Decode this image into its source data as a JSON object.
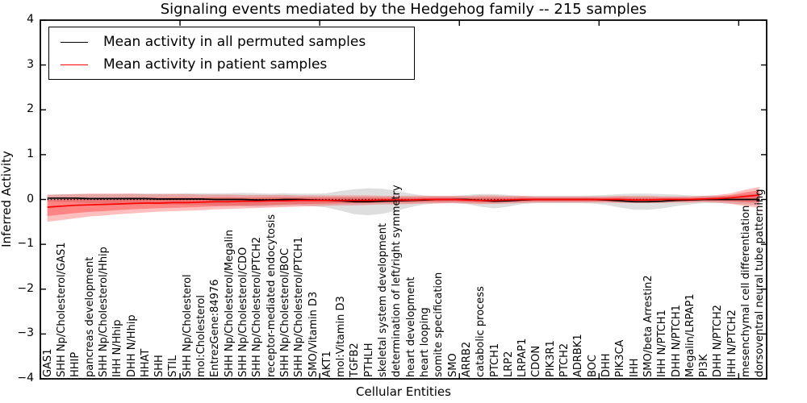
{
  "page": {
    "background": "#ffffff"
  },
  "chart_data": {
    "type": "line",
    "title": "Signaling events mediated by the Hedgehog family -- 215 samples",
    "xlabel": "Cellular Entities",
    "ylabel": "Inferred Activity",
    "ylim": [
      -4,
      4
    ],
    "grid": false,
    "legend_position": "upper-left",
    "yticks": [
      {
        "v": 4,
        "label": "4"
      },
      {
        "v": 3,
        "label": "3"
      },
      {
        "v": 2,
        "label": "2"
      },
      {
        "v": 1,
        "label": "1"
      },
      {
        "v": 0,
        "label": "0"
      },
      {
        "v": -1,
        "label": "−1"
      },
      {
        "v": -2,
        "label": "−2"
      },
      {
        "v": -3,
        "label": "−3"
      },
      {
        "v": -4,
        "label": "−4"
      }
    ],
    "x_major_tick_interval": 10,
    "categories": [
      "GAS1",
      "SHH Np/Cholesterol/GAS1",
      "HHIP",
      "pancreas development",
      "SHH Np/Cholesterol/Hhip",
      "IHH N/Hhip",
      "DHH N/Hhip",
      "HHAT",
      "SHH",
      "STIL",
      "SHH Np/Cholesterol",
      "mol:Cholesterol",
      "EntrezGene:84976",
      "SHH Np/Cholesterol/Megalin",
      "SHH Np/Cholesterol/CDO",
      "SHH Np/Cholesterol/PTCH2",
      "receptor-mediated endocytosis",
      "SHH Np/Cholesterol/BOC",
      "SHH Np/Cholesterol/PTCH1",
      "SMO/Vitamin D3",
      "AKT1",
      "mol:Vitamin D3",
      "TGFB2",
      "PTHLH",
      "skeletal system development",
      "determination of left/right symmetry",
      "heart development",
      "heart looping",
      "somite specification",
      "SMO",
      "ARRB2",
      "catabolic process",
      "PTCH1",
      "LRP2",
      "LRPAP1",
      "CDON",
      "PIK3R1",
      "PTCH2",
      "ADRBK1",
      "BOC",
      "DHH",
      "PIK3CA",
      "IHH",
      "SMO/beta Arrestin2",
      "IHH N/PTCH1",
      "DHH N/PTCH1",
      "Megalin/LRPAP1",
      "PI3K",
      "DHH N/PTCH2",
      "IHH N/PTCH2",
      "mesenchymal cell differentiation",
      "dorsoventral neural tube patterning"
    ],
    "series": [
      {
        "name": "Mean activity in all permuted samples",
        "color": "#000000",
        "values": [
          0.03,
          0.03,
          0.03,
          0.02,
          0.02,
          0.02,
          0.02,
          0.02,
          0.01,
          0.01,
          0.01,
          0.01,
          0.0,
          0.0,
          0.0,
          -0.01,
          -0.01,
          0.0,
          0.0,
          -0.01,
          -0.02,
          -0.03,
          -0.05,
          -0.05,
          -0.04,
          -0.03,
          -0.02,
          -0.01,
          0.0,
          0.0,
          0.0,
          -0.02,
          -0.04,
          -0.03,
          -0.01,
          0.0,
          0.0,
          0.0,
          0.0,
          0.0,
          -0.01,
          -0.03,
          -0.05,
          -0.05,
          -0.04,
          -0.02,
          -0.01,
          0.0,
          0.0,
          0.0,
          0.0,
          0.0
        ]
      },
      {
        "name": "Mean activity in patient samples",
        "color": "#ff0000",
        "values": [
          -0.17,
          -0.15,
          -0.13,
          -0.12,
          -0.11,
          -0.1,
          -0.09,
          -0.08,
          -0.08,
          -0.07,
          -0.07,
          -0.06,
          -0.05,
          -0.05,
          -0.04,
          -0.04,
          -0.03,
          -0.03,
          -0.02,
          -0.02,
          -0.02,
          -0.02,
          -0.02,
          -0.02,
          -0.01,
          -0.01,
          -0.01,
          0.0,
          0.0,
          0.0,
          -0.01,
          -0.02,
          -0.02,
          -0.01,
          0.0,
          0.0,
          0.0,
          0.0,
          0.0,
          0.0,
          0.0,
          0.0,
          -0.01,
          -0.01,
          0.0,
          0.0,
          0.0,
          0.01,
          0.02,
          0.04,
          0.07,
          0.1
        ]
      }
    ],
    "bands": [
      {
        "name": "permuted-samples-range",
        "color": "rgba(0,0,0,0.13)",
        "hi": [
          0.11,
          0.12,
          0.12,
          0.12,
          0.12,
          0.12,
          0.13,
          0.13,
          0.13,
          0.13,
          0.14,
          0.14,
          0.14,
          0.14,
          0.15,
          0.14,
          0.13,
          0.14,
          0.13,
          0.13,
          0.14,
          0.19,
          0.23,
          0.25,
          0.24,
          0.19,
          0.13,
          0.09,
          0.08,
          0.08,
          0.1,
          0.12,
          0.12,
          0.1,
          0.08,
          0.08,
          0.08,
          0.08,
          0.08,
          0.09,
          0.1,
          0.12,
          0.13,
          0.13,
          0.12,
          0.11,
          0.09,
          0.08,
          0.08,
          0.09,
          0.11,
          0.12
        ],
        "lo": [
          -0.05,
          -0.06,
          -0.06,
          -0.08,
          -0.08,
          -0.08,
          -0.09,
          -0.09,
          -0.11,
          -0.11,
          -0.12,
          -0.12,
          -0.14,
          -0.14,
          -0.15,
          -0.16,
          -0.15,
          -0.14,
          -0.13,
          -0.15,
          -0.18,
          -0.25,
          -0.33,
          -0.35,
          -0.32,
          -0.25,
          -0.17,
          -0.11,
          -0.08,
          -0.08,
          -0.1,
          -0.16,
          -0.2,
          -0.16,
          -0.1,
          -0.08,
          -0.08,
          -0.08,
          -0.08,
          -0.09,
          -0.12,
          -0.18,
          -0.23,
          -0.23,
          -0.2,
          -0.15,
          -0.11,
          -0.08,
          -0.08,
          -0.09,
          -0.11,
          -0.12
        ]
      },
      {
        "name": "patient-samples-range-outer",
        "color": "rgba(255,0,0,0.25)",
        "hi": [
          0.1,
          0.11,
          0.12,
          0.13,
          0.13,
          0.13,
          0.13,
          0.12,
          0.12,
          0.12,
          0.12,
          0.11,
          0.11,
          0.11,
          0.1,
          0.1,
          0.1,
          0.1,
          0.09,
          0.09,
          0.09,
          0.09,
          0.09,
          0.09,
          0.08,
          0.08,
          0.08,
          0.08,
          0.08,
          0.08,
          0.08,
          0.09,
          0.09,
          0.08,
          0.08,
          0.07,
          0.07,
          0.07,
          0.07,
          0.07,
          0.07,
          0.08,
          0.08,
          0.08,
          0.07,
          0.07,
          0.07,
          0.08,
          0.1,
          0.14,
          0.22,
          0.28
        ],
        "lo": [
          -0.5,
          -0.46,
          -0.42,
          -0.38,
          -0.36,
          -0.33,
          -0.31,
          -0.29,
          -0.27,
          -0.26,
          -0.25,
          -0.24,
          -0.22,
          -0.21,
          -0.2,
          -0.19,
          -0.18,
          -0.17,
          -0.16,
          -0.15,
          -0.14,
          -0.13,
          -0.13,
          -0.12,
          -0.11,
          -0.11,
          -0.1,
          -0.09,
          -0.09,
          -0.08,
          -0.09,
          -0.1,
          -0.1,
          -0.09,
          -0.08,
          -0.07,
          -0.07,
          -0.07,
          -0.07,
          -0.07,
          -0.07,
          -0.08,
          -0.08,
          -0.08,
          -0.08,
          -0.07,
          -0.07,
          -0.06,
          -0.07,
          -0.1,
          -0.15,
          -0.18
        ]
      },
      {
        "name": "patient-samples-range-inner",
        "color": "rgba(255,0,0,0.30)",
        "fraction_of_outer": 0.6
      }
    ],
    "zero_line": {
      "y": 0,
      "style": "dotted",
      "color": "#000000"
    },
    "legend": {
      "entries": [
        "Mean activity in all permuted samples",
        "Mean activity in patient samples"
      ]
    }
  }
}
